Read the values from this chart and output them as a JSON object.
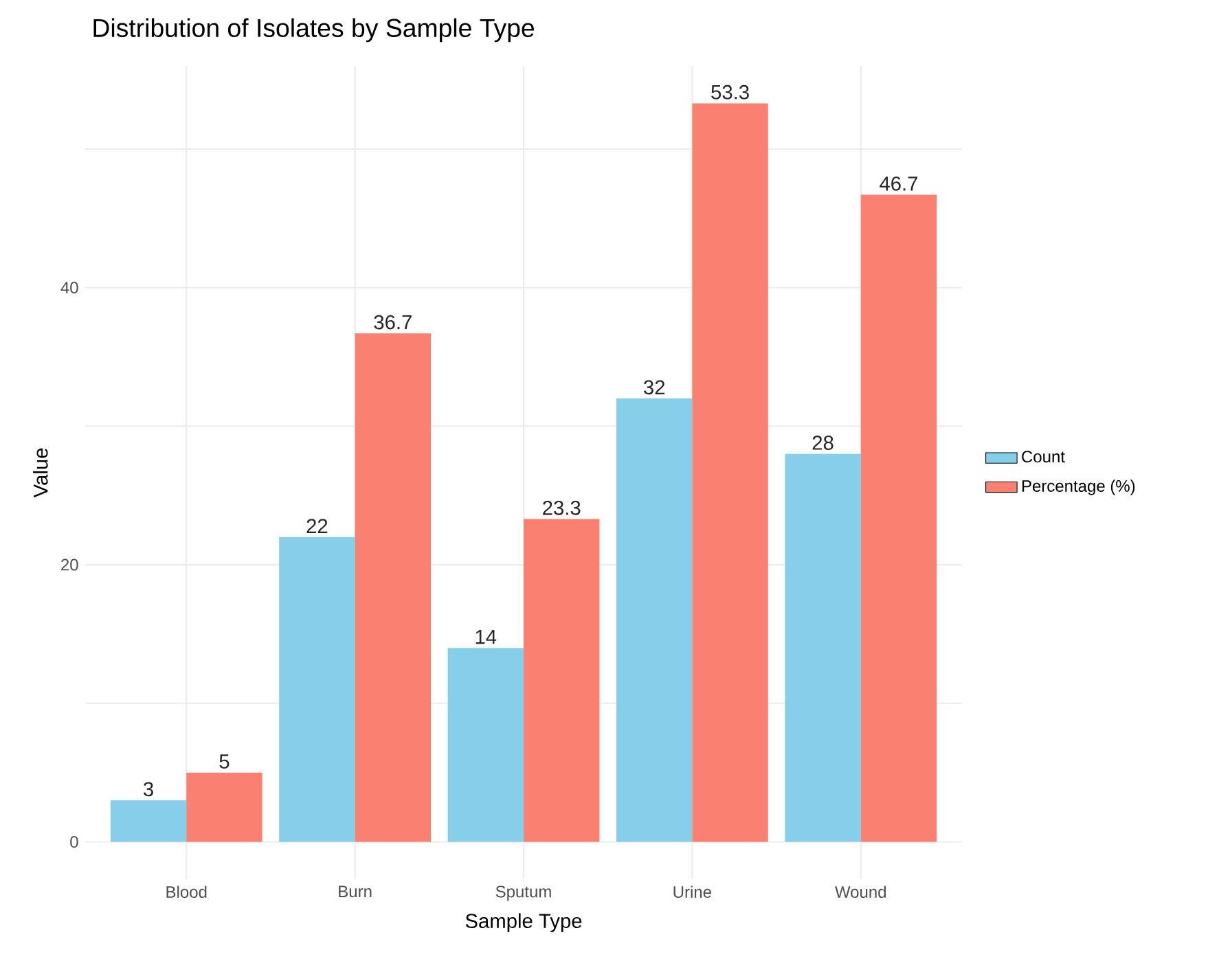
{
  "chart_data": {
    "type": "bar",
    "title": "Distribution of Isolates by Sample Type",
    "xlabel": "Sample Type",
    "ylabel": "Value",
    "categories": [
      "Blood",
      "Burn",
      "Sputum",
      "Urine",
      "Wound"
    ],
    "series": [
      {
        "name": "Count",
        "color": "#87ceeb",
        "values": [
          3,
          22,
          14,
          32,
          28
        ]
      },
      {
        "name": "Percentage (%)",
        "color": "#fa8072",
        "values": [
          5,
          36.7,
          23.3,
          53.3,
          46.7
        ]
      }
    ],
    "ylim": [
      -2.7,
      56
    ],
    "yticks": [
      0,
      {
        "value": 10,
        "label": null
      },
      20,
      {
        "value": 30,
        "label": null
      },
      40,
      {
        "value": 50,
        "label": null
      }
    ],
    "grid": true,
    "legend": "right",
    "data_labels": true
  }
}
